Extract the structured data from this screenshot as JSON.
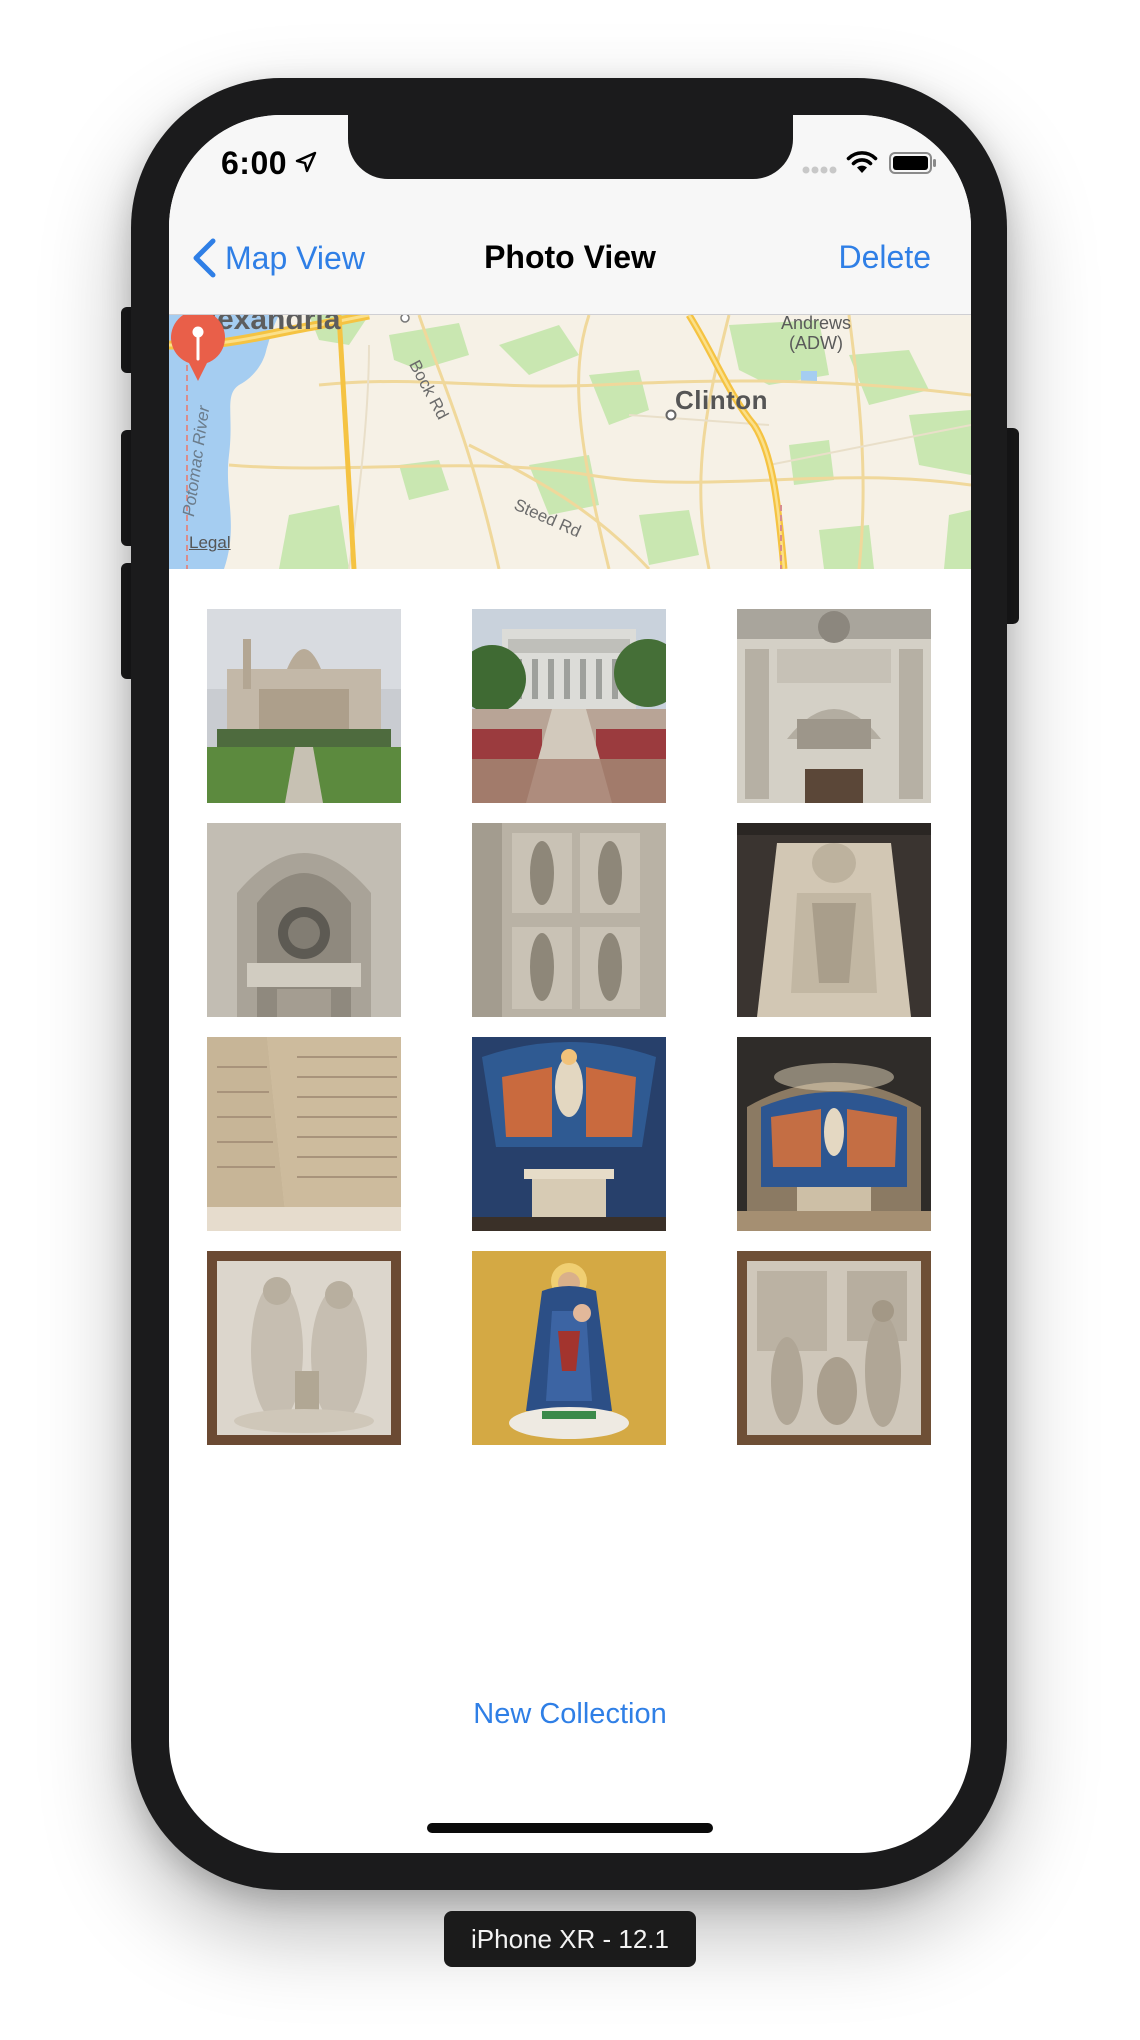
{
  "status_bar": {
    "time": "6:00",
    "icons": [
      "location-arrow-icon",
      "cellular-signal-icon",
      "wifi-icon",
      "battery-icon"
    ]
  },
  "nav_bar": {
    "back_label": "Map View",
    "title": "Photo View",
    "delete_label": "Delete"
  },
  "map": {
    "labels": {
      "alexandria": "Alexandria",
      "andrews_line1": "Andrews",
      "andrews_line2": "(ADW)",
      "clinton": "Clinton",
      "bock_rd": "Bock Rd",
      "steed_rd": "Steed Rd",
      "potomac_river": "Potomac River",
      "legal": "Legal"
    },
    "colors": {
      "land": "#f6f1e6",
      "water": "#a5cdf1",
      "park": "#c9e7b1",
      "highway": "#f5c342",
      "road": "#f0d89b",
      "pin": "#e95f49"
    }
  },
  "photos": [
    {
      "subject": "basilica-exterior"
    },
    {
      "subject": "garden-building"
    },
    {
      "subject": "carved-portal"
    },
    {
      "subject": "facade-arch"
    },
    {
      "subject": "saint-statues"
    },
    {
      "subject": "tomb-effigy"
    },
    {
      "subject": "inscribed-wall"
    },
    {
      "subject": "mosaic-chapel"
    },
    {
      "subject": "chapel-altar"
    },
    {
      "subject": "relief-holy-family"
    },
    {
      "subject": "madonna-mosaic"
    },
    {
      "subject": "relief-scene"
    }
  ],
  "footer": {
    "new_collection_label": "New Collection"
  },
  "simulator_label": "iPhone XR - 12.1"
}
